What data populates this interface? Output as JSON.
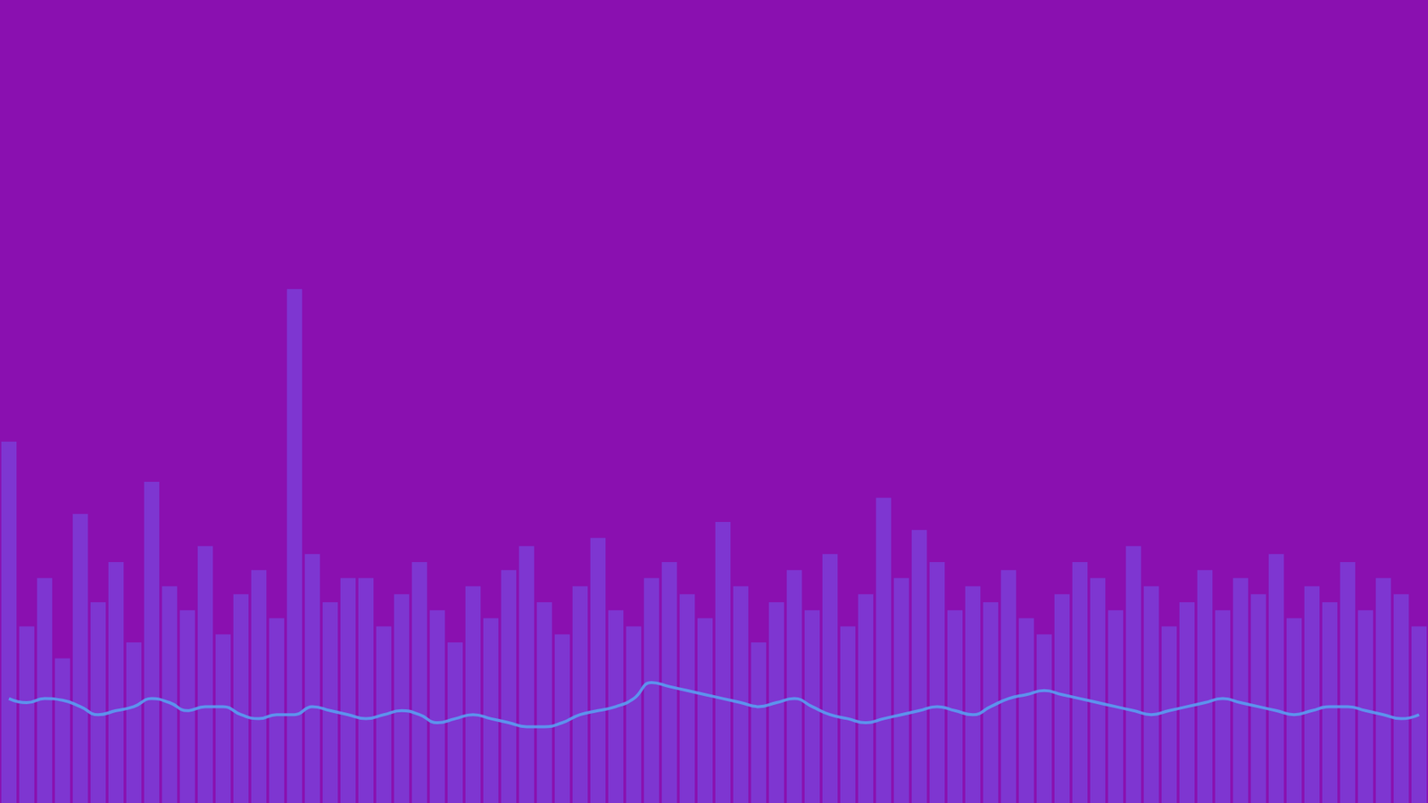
{
  "chart_data": {
    "type": "bar",
    "categories": [
      null,
      null,
      null,
      null,
      null,
      null,
      null,
      null,
      null,
      null,
      null,
      null,
      null,
      null,
      null,
      null,
      null,
      null,
      null,
      null,
      null,
      null,
      null,
      null,
      null,
      null,
      null,
      null,
      null,
      null,
      null,
      null,
      null,
      null,
      null,
      null,
      null,
      null,
      null,
      null,
      null,
      null,
      null,
      null,
      null,
      null,
      null,
      null,
      null,
      null,
      null,
      null,
      null,
      null,
      null,
      null,
      null,
      null,
      null,
      null,
      null,
      null,
      null,
      null,
      null,
      null,
      null,
      null,
      null,
      null,
      null,
      null,
      null,
      null,
      null,
      null,
      null,
      null,
      null,
      null
    ],
    "series": [
      {
        "type": "bar",
        "color": "#7650e8",
        "values": [
          45,
          22,
          28,
          18,
          36,
          25,
          30,
          20,
          40,
          27,
          24,
          32,
          21,
          26,
          29,
          23,
          64,
          31,
          25,
          28,
          28,
          22,
          26,
          30,
          24,
          20,
          27,
          23,
          29,
          32,
          25,
          21,
          27,
          33,
          24,
          22,
          28,
          30,
          26,
          23,
          35,
          27,
          20,
          25,
          29,
          24,
          31,
          22,
          26,
          38,
          28,
          34,
          30,
          24,
          27,
          25,
          29,
          23,
          21,
          26,
          30,
          28,
          24,
          32,
          27,
          22,
          25,
          29,
          24,
          28,
          26,
          31,
          23,
          27,
          25,
          30,
          24,
          28,
          26,
          22
        ]
      },
      {
        "type": "line",
        "color": "#5a9cf0",
        "values": [
          13,
          12.5,
          13,
          12.8,
          12,
          11,
          11.5,
          12,
          13,
          12.5,
          11.5,
          12,
          12,
          11,
          10.5,
          11,
          11,
          12,
          11.5,
          11,
          10.5,
          11,
          11.5,
          11,
          10,
          10.5,
          11,
          10.5,
          10,
          9.5,
          9.5,
          10,
          11,
          11.5,
          12,
          13,
          15,
          14.5,
          14,
          13.5,
          13,
          12.5,
          12,
          12.5,
          13,
          12,
          11,
          10.5,
          10,
          10.5,
          11,
          11.5,
          12,
          11.5,
          11,
          12,
          13,
          13.5,
          14,
          13.5,
          13,
          12.5,
          12,
          11.5,
          11,
          11.5,
          12,
          12.5,
          13,
          12.5,
          12,
          11.5,
          11,
          11.5,
          12,
          12,
          11.5,
          11,
          10.5,
          11
        ]
      }
    ],
    "ylim": [
      0,
      100
    ],
    "grid": false,
    "tick_labels": false
  }
}
